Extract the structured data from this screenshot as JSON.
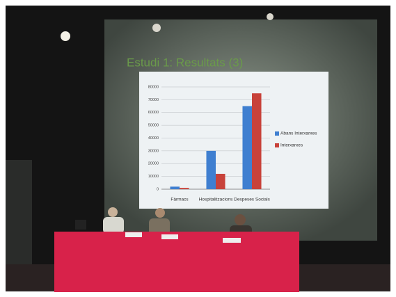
{
  "chart_data": {
    "type": "bar",
    "title": "Estudi 1: Resultats (3)",
    "categories": [
      "Fàrmacs",
      "Hospitalitzacions",
      "Despeses Socials"
    ],
    "series": [
      {
        "name": "Abans Interxarxes",
        "color": "#3f7fd0",
        "values": [
          2000,
          30000,
          65000
        ]
      },
      {
        "name": "Interxarxes",
        "color": "#c8423a",
        "values": [
          1000,
          12000,
          75000
        ]
      }
    ],
    "ylim": [
      0,
      80000
    ],
    "yticks": [
      0,
      10000,
      20000,
      30000,
      40000,
      50000,
      60000,
      70000,
      80000
    ],
    "grid": true,
    "legend": "right"
  }
}
